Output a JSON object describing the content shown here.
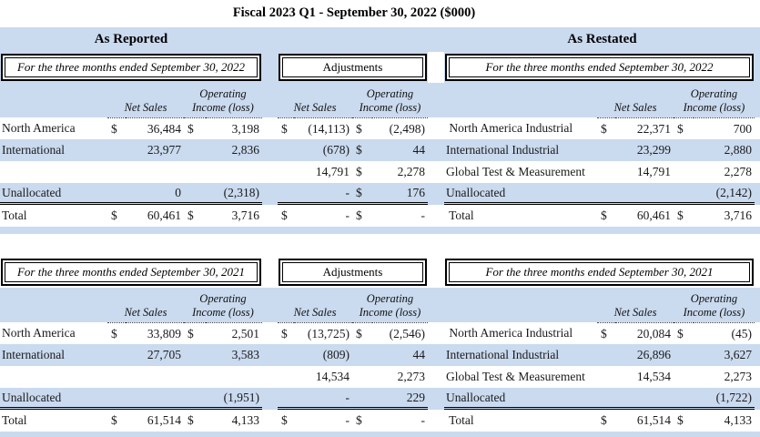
{
  "title": "Fiscal 2023 Q1 - September 30, 2022 ($000)",
  "colors": {
    "band_blue": "#cadaef"
  },
  "group_headers": {
    "reported": "As Reported",
    "restated": "As Restated"
  },
  "col_headers": {
    "net_sales": "Net Sales",
    "op1": "Operating",
    "op2": "Income (loss)"
  },
  "tables": [
    {
      "period_left": "For the three months ended September 30, 2022",
      "period_middle": "Adjustments",
      "period_right": "For the three months ended September 30, 2022",
      "rows": [
        {
          "shade": false,
          "left": {
            "label": "North America",
            "d1": "$",
            "v1": "36,484",
            "d2": "$",
            "v2": "3,198"
          },
          "mid": {
            "d1": "$",
            "v1": "(14,113)",
            "d2": "$",
            "v2": "(2,498)"
          },
          "right": {
            "label": " North America Industrial",
            "d1": "$",
            "v1": "22,371",
            "d2": "$",
            "v2": "700"
          }
        },
        {
          "shade": true,
          "left": {
            "label": "International",
            "v1": "23,977",
            "v2": "2,836"
          },
          "mid": {
            "v1": "(678)",
            "d2": "$",
            "v2": "44"
          },
          "right": {
            "label": "International Industrial",
            "v1": "23,299",
            "v2": "2,880"
          }
        },
        {
          "shade": false,
          "left": {},
          "mid": {
            "v1": "14,791",
            "d2": "$",
            "v2": "2,278"
          },
          "right": {
            "label": "Global Test & Measurement",
            "v1": "14,791",
            "v2": "2,278"
          }
        },
        {
          "shade": true,
          "left": {
            "label": "Unallocated",
            "v1": "0",
            "v2": "(2,318)"
          },
          "mid": {
            "v1": "-",
            "d2": "$",
            "v2": "176"
          },
          "right": {
            "label": "Unallocated",
            "v2": "(2,142)"
          }
        },
        {
          "shade": false,
          "left": {
            "label": "Total",
            "d1": "$",
            "v1": "60,461",
            "d2": "$",
            "v2": "3,716"
          },
          "mid": {
            "d1": "$",
            "v1": "-",
            "d2": "$",
            "v2": "-"
          },
          "right": {
            "label": " Total",
            "d1": "$",
            "v1": "60,461",
            "d2": "$",
            "v2": "3,716"
          }
        }
      ]
    },
    {
      "period_left": "For the three months ended September 30, 2021",
      "period_middle": "Adjustments",
      "period_right": "For the three months ended September 30, 2021",
      "rows": [
        {
          "shade": false,
          "left": {
            "label": "North America",
            "d1": "$",
            "v1": "33,809",
            "d2": "$",
            "v2": "2,501"
          },
          "mid": {
            "d1": "$",
            "v1": "(13,725)",
            "d2": "$",
            "v2": "(2,546)"
          },
          "right": {
            "label": " North America Industrial",
            "d1": "$",
            "v1": "20,084",
            "d2": "$",
            "v2": "(45)"
          }
        },
        {
          "shade": true,
          "left": {
            "label": "International",
            "v1": "27,705",
            "v2": "3,583"
          },
          "mid": {
            "v1": "(809)",
            "v2": "44"
          },
          "right": {
            "label": "International Industrial",
            "v1": "26,896",
            "v2": "3,627"
          }
        },
        {
          "shade": false,
          "left": {},
          "mid": {
            "v1": "14,534",
            "v2": "2,273"
          },
          "right": {
            "label": "Global Test & Measurement",
            "v1": "14,534",
            "v2": "2,273"
          }
        },
        {
          "shade": true,
          "left": {
            "label": "Unallocated",
            "v2": "(1,951)"
          },
          "mid": {
            "v1": "-",
            "v2": "229"
          },
          "right": {
            "label": "Unallocated",
            "v2": "(1,722)"
          }
        },
        {
          "shade": false,
          "left": {
            "label": "Total",
            "d1": "$",
            "v1": "61,514",
            "d2": "$",
            "v2": "4,133"
          },
          "mid": {
            "d1": "$",
            "v1": "-",
            "d2": "$",
            "v2": "-"
          },
          "right": {
            "label": " Total",
            "d1": "$",
            "v1": "61,514",
            "d2": "$",
            "v2": "4,133"
          }
        }
      ]
    }
  ]
}
